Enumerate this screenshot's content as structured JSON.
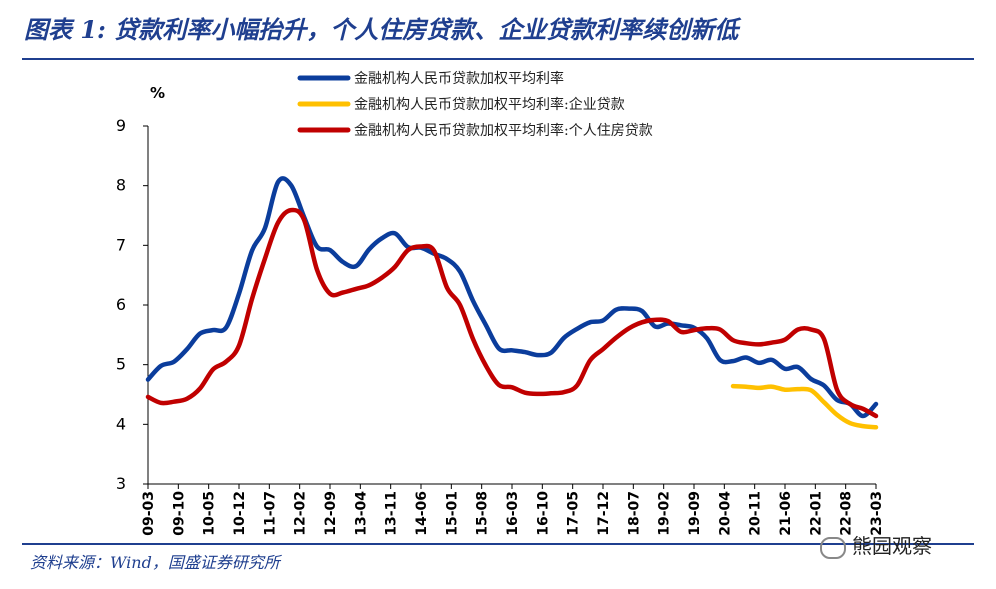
{
  "header": {
    "title": "图表 1:  贷款利率小幅抬升，个人住房贷款、企业贷款利率续创新低"
  },
  "footer": {
    "source": "资料来源：Wind，国盛证券研究所",
    "watermark": "熊园观察",
    "watermark_icon": "wechat-icon"
  },
  "chart_data": {
    "type": "line",
    "ylabel": "%",
    "ylim": [
      3,
      9
    ],
    "yticks": [
      3,
      4,
      5,
      6,
      7,
      8,
      9
    ],
    "xlim": [
      "09-03",
      "23-03"
    ],
    "xticks": [
      "09-03",
      "09-10",
      "10-05",
      "10-12",
      "11-07",
      "12-02",
      "12-09",
      "13-04",
      "13-11",
      "14-06",
      "15-01",
      "15-08",
      "16-03",
      "16-10",
      "17-05",
      "17-12",
      "18-07",
      "19-02",
      "19-09",
      "20-04",
      "20-11",
      "21-06",
      "22-01",
      "22-08",
      "23-03"
    ],
    "legend_position": "top",
    "grid": false,
    "series": [
      {
        "name": "金融机构人民币贷款加权平均利率",
        "color": "#0b3d9c",
        "x": [
          "09-03",
          "09-06",
          "09-09",
          "09-12",
          "10-03",
          "10-06",
          "10-09",
          "10-12",
          "11-03",
          "11-06",
          "11-09",
          "11-12",
          "12-03",
          "12-06",
          "12-09",
          "12-12",
          "13-03",
          "13-06",
          "13-09",
          "13-12",
          "14-03",
          "14-06",
          "14-09",
          "14-12",
          "15-03",
          "15-06",
          "15-09",
          "15-12",
          "16-03",
          "16-06",
          "16-09",
          "16-12",
          "17-03",
          "17-06",
          "17-09",
          "17-12",
          "18-03",
          "18-06",
          "18-09",
          "18-12",
          "19-03",
          "19-06",
          "19-09",
          "19-12",
          "20-03",
          "20-06",
          "20-09",
          "20-12",
          "21-03",
          "21-06",
          "21-09",
          "21-12",
          "22-03",
          "22-06",
          "22-09",
          "22-12",
          "23-03"
        ],
        "values": [
          4.75,
          4.98,
          5.05,
          5.26,
          5.52,
          5.58,
          5.62,
          6.19,
          6.91,
          7.29,
          8.06,
          8.01,
          7.48,
          6.98,
          6.92,
          6.72,
          6.65,
          6.93,
          7.12,
          7.2,
          6.97,
          6.96,
          6.86,
          6.77,
          6.56,
          6.07,
          5.66,
          5.27,
          5.24,
          5.21,
          5.16,
          5.2,
          5.45,
          5.6,
          5.71,
          5.74,
          5.92,
          5.94,
          5.9,
          5.64,
          5.69,
          5.66,
          5.62,
          5.44,
          5.08,
          5.06,
          5.12,
          5.03,
          5.08,
          4.93,
          4.96,
          4.76,
          4.65,
          4.41,
          4.34,
          4.14,
          4.34
        ]
      },
      {
        "name": "金融机构人民币贷款加权平均利率:企业贷款",
        "color": "#ffc000",
        "x": [
          "20-06",
          "20-09",
          "20-12",
          "21-03",
          "21-06",
          "21-09",
          "21-12",
          "22-03",
          "22-06",
          "22-09",
          "22-12",
          "23-03"
        ],
        "values": [
          4.64,
          4.63,
          4.61,
          4.63,
          4.58,
          4.59,
          4.57,
          4.37,
          4.16,
          4.02,
          3.97,
          3.95
        ]
      },
      {
        "name": "金融机构人民币贷款加权平均利率:个人住房贷款",
        "color": "#c00000",
        "x": [
          "09-03",
          "09-06",
          "09-09",
          "09-12",
          "10-03",
          "10-06",
          "10-09",
          "10-12",
          "11-03",
          "11-06",
          "11-09",
          "11-12",
          "12-03",
          "12-06",
          "12-09",
          "12-12",
          "13-03",
          "13-06",
          "13-09",
          "13-12",
          "14-03",
          "14-06",
          "14-09",
          "14-12",
          "15-03",
          "15-06",
          "15-09",
          "15-12",
          "16-03",
          "16-06",
          "16-09",
          "16-12",
          "17-03",
          "17-06",
          "17-09",
          "17-12",
          "18-03",
          "18-06",
          "18-09",
          "18-12",
          "19-03",
          "19-06",
          "19-09",
          "19-12",
          "20-03",
          "20-06",
          "20-09",
          "20-12",
          "21-03",
          "21-06",
          "21-09",
          "21-12",
          "22-03",
          "22-06",
          "22-09",
          "22-12",
          "23-03"
        ],
        "values": [
          4.46,
          4.36,
          4.38,
          4.43,
          4.6,
          4.92,
          5.05,
          5.32,
          6.1,
          6.78,
          7.38,
          7.59,
          7.43,
          6.59,
          6.19,
          6.21,
          6.27,
          6.33,
          6.46,
          6.64,
          6.92,
          6.98,
          6.91,
          6.29,
          6.0,
          5.43,
          4.98,
          4.66,
          4.62,
          4.53,
          4.51,
          4.52,
          4.54,
          4.65,
          5.07,
          5.26,
          5.45,
          5.61,
          5.71,
          5.75,
          5.73,
          5.55,
          5.58,
          5.61,
          5.59,
          5.41,
          5.36,
          5.34,
          5.37,
          5.42,
          5.59,
          5.59,
          5.43,
          4.58,
          4.34,
          4.26,
          4.14
        ]
      }
    ]
  }
}
